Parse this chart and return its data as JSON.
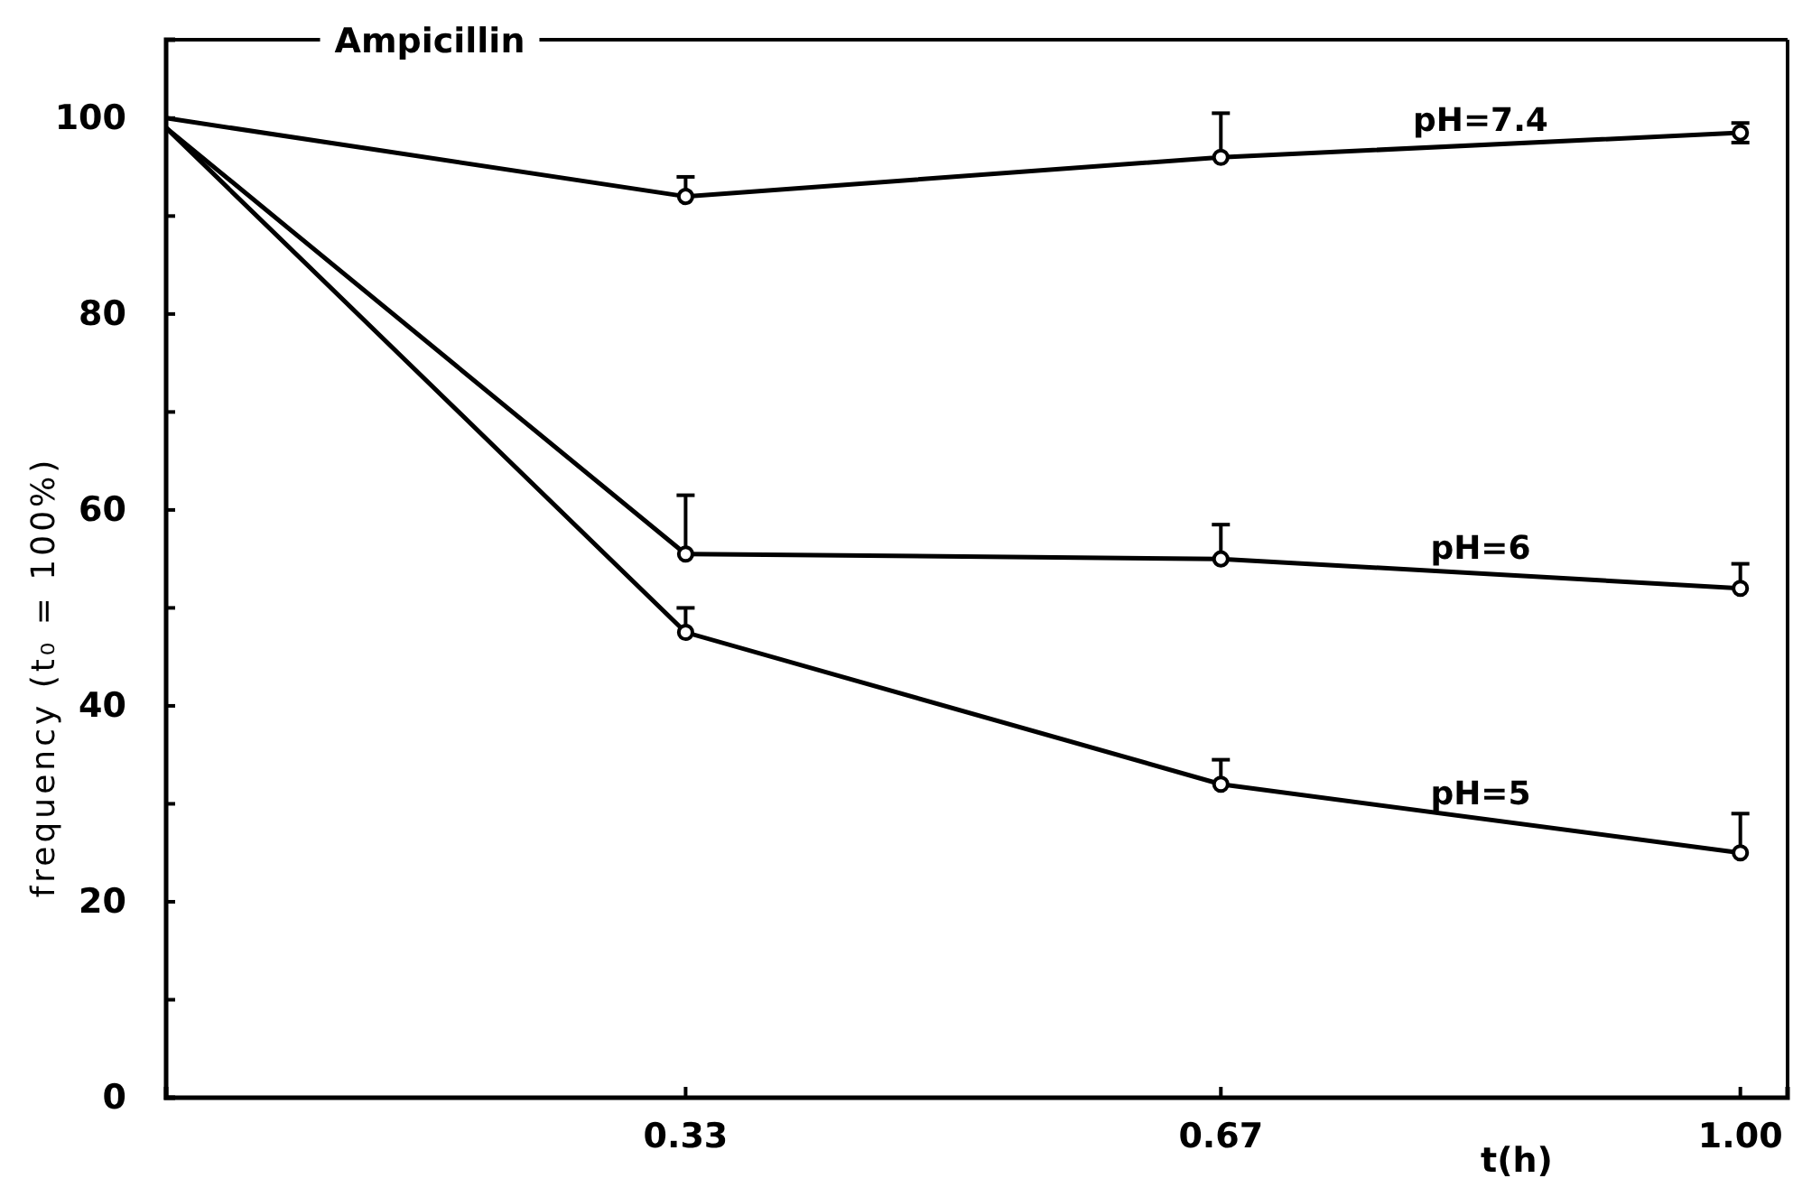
{
  "chart_data": {
    "type": "line",
    "title": "Ampicillin",
    "xlabel": "t(h)",
    "ylabel": "frequency    (t₀ = 100%)",
    "x": [
      0,
      0.33,
      0.67,
      1.0
    ],
    "series": [
      {
        "name": "pH=7.4",
        "color": "#000000",
        "values": [
          100,
          92,
          96,
          98.5
        ],
        "errors": [
          null,
          [
            92,
            94
          ],
          [
            96,
            100.5
          ],
          [
            97.5,
            99.5
          ]
        ]
      },
      {
        "name": "pH=6",
        "color": "#000000",
        "values": [
          99,
          55.5,
          55,
          52
        ],
        "errors": [
          null,
          [
            55.5,
            61.5
          ],
          [
            55,
            58.5
          ],
          [
            52,
            54.5
          ]
        ]
      },
      {
        "name": "pH=5",
        "color": "#000000",
        "values": [
          99,
          47.5,
          32,
          25
        ],
        "errors": [
          null,
          [
            47.5,
            50
          ],
          [
            32,
            34.5
          ],
          [
            25,
            29
          ]
        ]
      }
    ],
    "xlim": [
      0,
      1.03
    ],
    "ylim": [
      0,
      108
    ],
    "xticks": [
      {
        "value": 0,
        "label": null
      },
      0.33,
      0.67,
      {
        "value": 1.0,
        "label": "1.00"
      }
    ],
    "yticks": [
      0,
      {
        "value": 10,
        "label": null
      },
      20,
      {
        "value": 30,
        "label": null
      },
      40,
      {
        "value": 50,
        "label": null
      },
      60,
      {
        "value": 70,
        "label": null
      },
      80,
      {
        "value": 90,
        "label": null
      },
      100
    ],
    "marker": "circle",
    "line_style": "solid",
    "legend": false,
    "grid": false
  }
}
